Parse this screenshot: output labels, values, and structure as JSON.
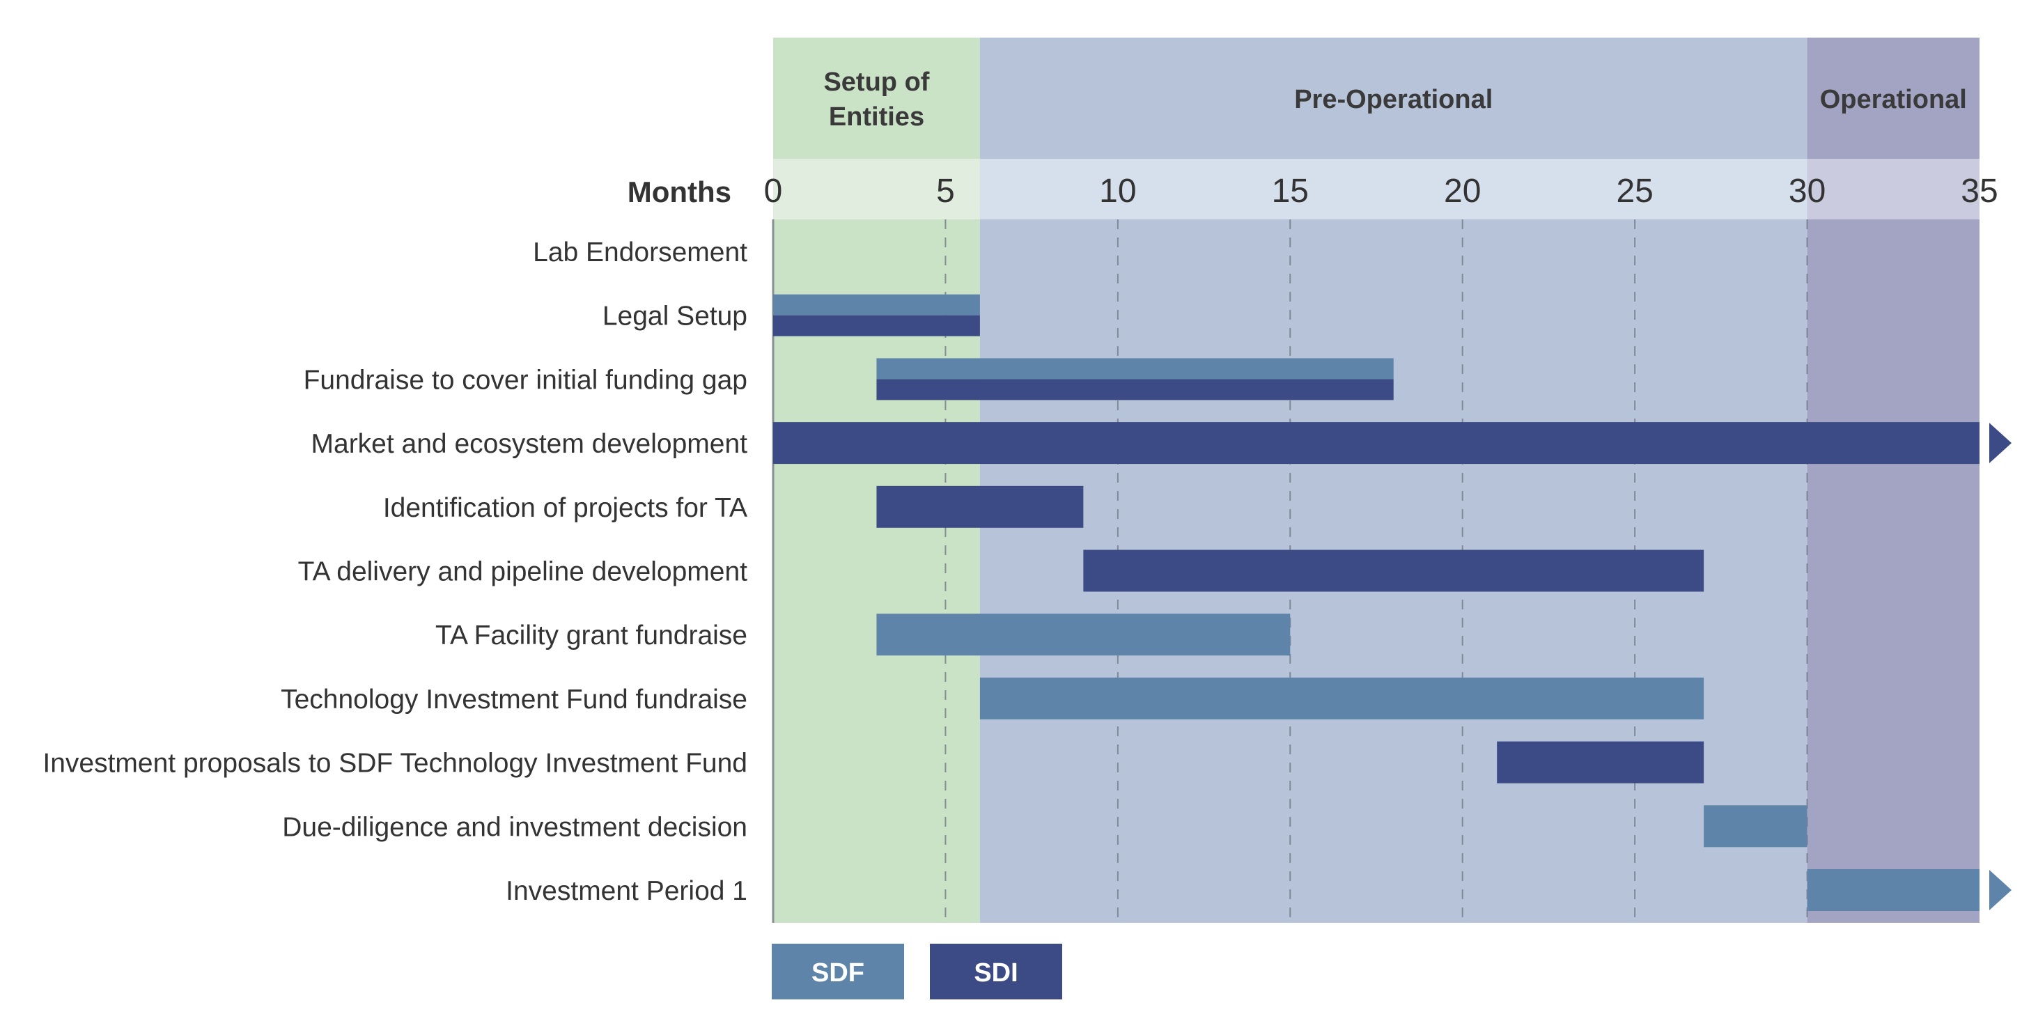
{
  "chart_data": {
    "type": "gantt",
    "xlabel": "Months",
    "xlim": [
      0,
      35
    ],
    "ticks": [
      0,
      5,
      10,
      15,
      20,
      25,
      30,
      35
    ],
    "grid": "vertical dashed",
    "phases": [
      {
        "label_lines": [
          "Setup of",
          "Entities"
        ],
        "start": 0,
        "end": 6,
        "color": "#cae2c6",
        "band_color": "#e1eedf"
      },
      {
        "label_lines": [
          "Pre-Operational"
        ],
        "start": 6,
        "end": 30,
        "color": "#b6c3d9",
        "band_color": "#d6dfec"
      },
      {
        "label_lines": [
          "Operational"
        ],
        "start": 30,
        "end": 35,
        "color": "#a3a4c4",
        "band_color": "#cbcbdf"
      }
    ],
    "series": [
      {
        "name": "SDF",
        "color": "#5e84a9"
      },
      {
        "name": "SDI",
        "color": "#3c4b85"
      }
    ],
    "tasks": [
      {
        "label": "Lab Endorsement",
        "bars": []
      },
      {
        "label": "Legal Setup",
        "bars": [
          {
            "series": "SDF",
            "start": 0,
            "end": 6,
            "half": "top"
          },
          {
            "series": "SDI",
            "start": 0,
            "end": 6,
            "half": "bottom"
          }
        ]
      },
      {
        "label": "Fundraise to cover initial funding gap",
        "bars": [
          {
            "series": "SDF",
            "start": 3,
            "end": 18,
            "half": "top"
          },
          {
            "series": "SDI",
            "start": 3,
            "end": 18,
            "half": "bottom"
          }
        ]
      },
      {
        "label": "Market and ecosystem development",
        "bars": [
          {
            "series": "SDI",
            "start": 0,
            "end": 35,
            "half": "full",
            "continues": true
          }
        ]
      },
      {
        "label": "Identification of projects for TA",
        "bars": [
          {
            "series": "SDI",
            "start": 3,
            "end": 9,
            "half": "full"
          }
        ]
      },
      {
        "label": "TA delivery and pipeline development",
        "bars": [
          {
            "series": "SDI",
            "start": 9,
            "end": 27,
            "half": "full"
          }
        ]
      },
      {
        "label": "TA Facility grant fundraise",
        "bars": [
          {
            "series": "SDF",
            "start": 3,
            "end": 15,
            "half": "full"
          }
        ]
      },
      {
        "label": "Technology Investment Fund fundraise",
        "bars": [
          {
            "series": "SDF",
            "start": 6,
            "end": 27,
            "half": "full"
          }
        ]
      },
      {
        "label": "Investment proposals to SDF Technology Investment Fund",
        "bars": [
          {
            "series": "SDI",
            "start": 21,
            "end": 27,
            "half": "full"
          }
        ]
      },
      {
        "label": "Due-diligence and investment decision",
        "bars": [
          {
            "series": "SDF",
            "start": 27,
            "end": 30,
            "half": "full"
          }
        ]
      },
      {
        "label": "Investment Period 1",
        "bars": [
          {
            "series": "SDF",
            "start": 30,
            "end": 35,
            "half": "full",
            "continues": true
          }
        ]
      }
    ]
  }
}
